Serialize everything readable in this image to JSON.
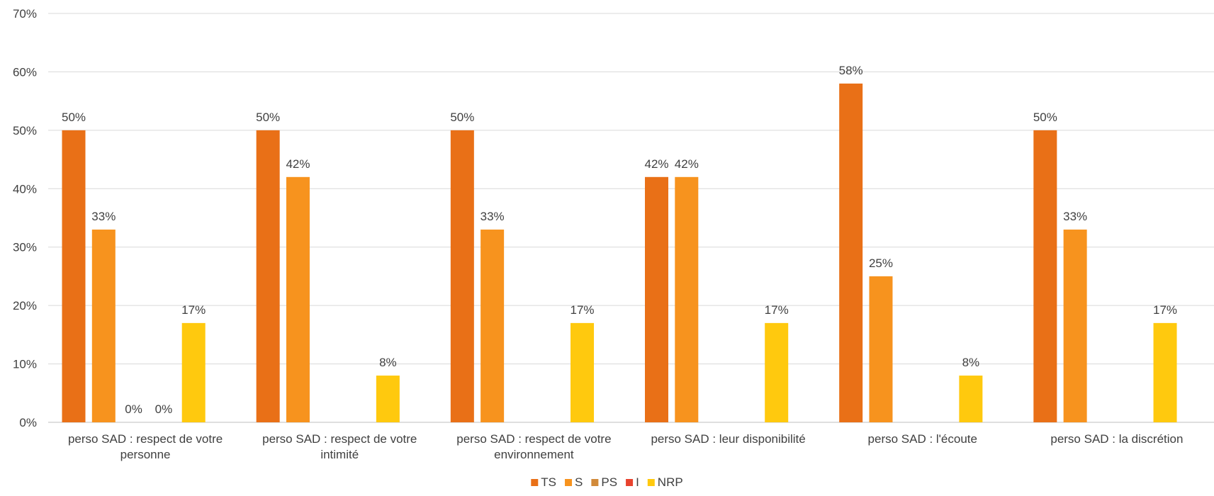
{
  "chart_data": {
    "type": "bar",
    "categories": [
      [
        "perso SAD : respect de votre",
        "personne"
      ],
      [
        "perso SAD : respect de votre",
        "intimité"
      ],
      [
        "perso SAD : respect de votre",
        "environnement"
      ],
      [
        "perso SAD : leur disponibilité"
      ],
      [
        "perso SAD : l'écoute"
      ],
      [
        "perso SAD : la discrétion"
      ]
    ],
    "series": [
      {
        "name": "TS",
        "color": "#E97017",
        "values": [
          50,
          50,
          50,
          42,
          58,
          50
        ],
        "labels": [
          "50%",
          "50%",
          "50%",
          "42%",
          "58%",
          "50%"
        ]
      },
      {
        "name": "S",
        "color": "#F7931E",
        "values": [
          33,
          42,
          33,
          42,
          25,
          33
        ],
        "labels": [
          "33%",
          "42%",
          "33%",
          "42%",
          "25%",
          "33%"
        ]
      },
      {
        "name": "PS",
        "color": "#D18A3A",
        "values": [
          0,
          null,
          null,
          null,
          null,
          null
        ],
        "labels": [
          "0%",
          "",
          "",
          "",
          "",
          ""
        ]
      },
      {
        "name": "I",
        "color": "#E8432E",
        "values": [
          0,
          null,
          null,
          null,
          null,
          null
        ],
        "labels": [
          "0%",
          "",
          "",
          "",
          "",
          ""
        ]
      },
      {
        "name": "NRP",
        "color": "#FFC90E",
        "values": [
          17,
          8,
          17,
          17,
          8,
          17
        ],
        "labels": [
          "17%",
          "8%",
          "17%",
          "17%",
          "8%",
          "17%"
        ]
      }
    ],
    "y_ticks": [
      "0%",
      "10%",
      "20%",
      "30%",
      "40%",
      "50%",
      "60%",
      "70%"
    ],
    "ylim": [
      0,
      70
    ],
    "grid": true,
    "legend_position": "bottom"
  }
}
